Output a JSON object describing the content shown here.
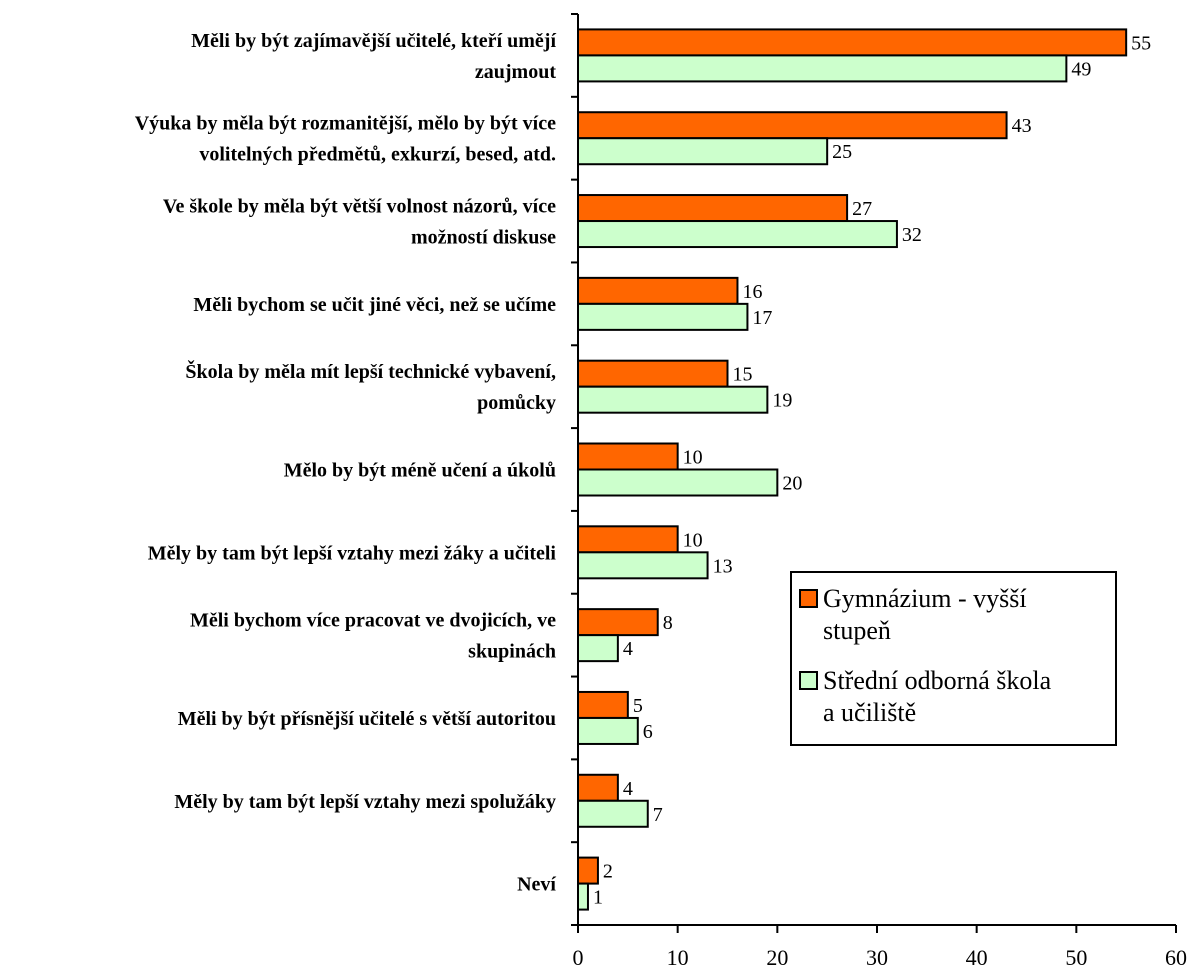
{
  "chart_data": {
    "type": "bar",
    "orientation": "horizontal",
    "categories": [
      [
        "Měli by být zajímavější učitelé, kteří umějí",
        "zaujmout"
      ],
      [
        "Výuka by měla být rozmanitější, mělo by být více",
        "volitelných předmětů, exkurzí, besed, atd."
      ],
      [
        "Ve škole by měla být větší volnost názorů, více",
        "možností diskuse"
      ],
      [
        "Měli bychom se učit jiné věci, než se učíme"
      ],
      [
        "Škola by měla mít lepší technické vybavení,",
        "pomůcky"
      ],
      [
        "Mělo by být méně učení a úkolů"
      ],
      [
        "Měly by tam být lepší vztahy mezi žáky a učiteli"
      ],
      [
        "Měli bychom více pracovat ve dvojicích, ve",
        "skupinách"
      ],
      [
        "Měli by být přísnější učitelé s větší autoritou"
      ],
      [
        "Měly by tam být lepší vztahy mezi spolužáky"
      ],
      [
        "Neví"
      ]
    ],
    "series": [
      {
        "name": "Gymnázium - vyšší stupeň",
        "values": [
          55,
          43,
          27,
          16,
          15,
          10,
          10,
          8,
          5,
          4,
          2
        ],
        "color": "#ff6600"
      },
      {
        "name": "Střední odborná škola a učiliště",
        "values": [
          49,
          25,
          32,
          17,
          19,
          20,
          13,
          4,
          6,
          7,
          1
        ],
        "color": "#ccffcc"
      }
    ],
    "legend_lines": [
      [
        "Gymnázium - vyšší",
        "stupeň"
      ],
      [
        "Střední odborná škola",
        "a učiliště"
      ]
    ],
    "xticks": [
      "0",
      "10",
      "20",
      "30",
      "40",
      "50",
      "60"
    ],
    "xlim": [
      0,
      60
    ],
    "grid": false,
    "legend_position": "right"
  }
}
